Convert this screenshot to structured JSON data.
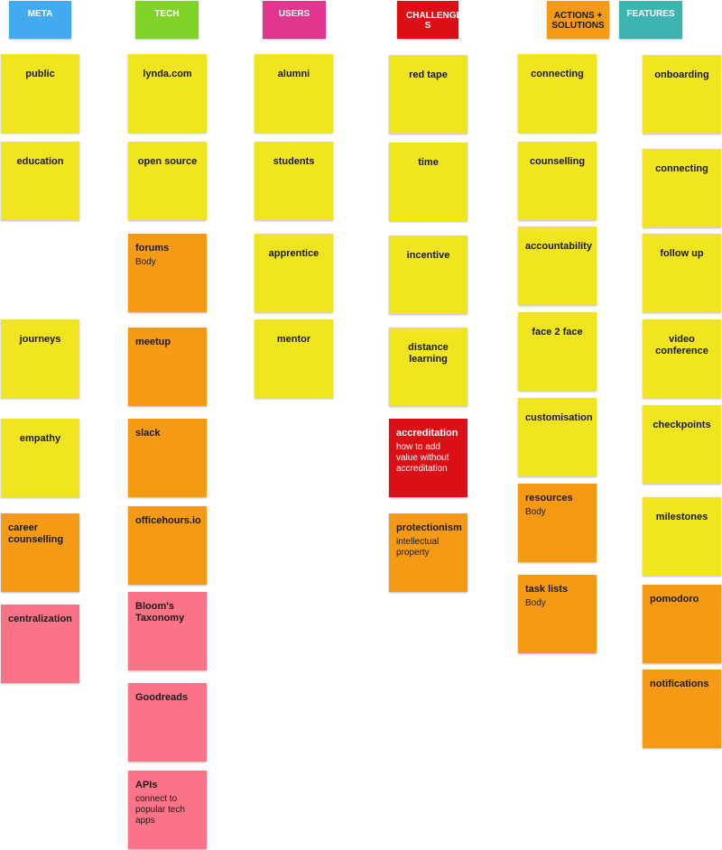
{
  "headers": {
    "meta": "META",
    "tech": "TECH",
    "users": "USERS",
    "challenges": "CHALLENGE S",
    "actions": "ACTIONS + SOLUTIONS",
    "features": "FEATURES"
  },
  "notes": {
    "meta": [
      {
        "title": "public"
      },
      {
        "title": "education"
      },
      {
        "title": "journeys"
      },
      {
        "title": "empathy"
      },
      {
        "title": "career counselling"
      },
      {
        "title": "centralization"
      }
    ],
    "tech": [
      {
        "title": "lynda.com"
      },
      {
        "title": "open source"
      },
      {
        "title": "forums",
        "body": "Body"
      },
      {
        "title": "meetup"
      },
      {
        "title": "slack"
      },
      {
        "title": "officehours.io"
      },
      {
        "title": "Bloom's Taxonomy"
      },
      {
        "title": "Goodreads"
      },
      {
        "title": "APIs",
        "body": "connect to popular tech apps"
      }
    ],
    "users": [
      {
        "title": "alumni"
      },
      {
        "title": "students"
      },
      {
        "title": "apprentice"
      },
      {
        "title": "mentor"
      }
    ],
    "challenges": [
      {
        "title": "red tape"
      },
      {
        "title": "time"
      },
      {
        "title": "incentive"
      },
      {
        "title": "distance learning"
      },
      {
        "title": "accreditation",
        "body": "how to add value without accreditation"
      },
      {
        "title": "protectionism",
        "body": "intellectual property"
      }
    ],
    "actions": [
      {
        "title": "connecting"
      },
      {
        "title": "counselling"
      },
      {
        "title": "accountability"
      },
      {
        "title": "face 2 face"
      },
      {
        "title": "customisation"
      },
      {
        "title": "resources",
        "body": "Body"
      },
      {
        "title": "task lists",
        "body": "Body"
      }
    ],
    "features": [
      {
        "title": "onboarding"
      },
      {
        "title": "connecting"
      },
      {
        "title": "follow up"
      },
      {
        "title": "video conference"
      },
      {
        "title": "checkpoints"
      },
      {
        "title": "milestones"
      },
      {
        "title": "pomodoro"
      },
      {
        "title": "notifications"
      }
    ]
  }
}
